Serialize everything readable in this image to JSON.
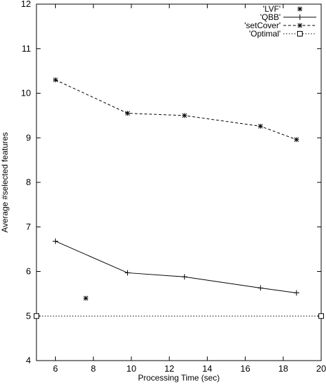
{
  "chart_data": {
    "type": "line",
    "xlabel": "Processing Time (sec)",
    "ylabel": "Average #selected features",
    "xlim": [
      5,
      20
    ],
    "ylim": [
      4,
      12
    ],
    "xticks": [
      6,
      8,
      10,
      12,
      14,
      16,
      18,
      20
    ],
    "yticks": [
      4,
      5,
      6,
      7,
      8,
      9,
      10,
      11,
      12
    ],
    "grid": false,
    "legend_position": "top-right",
    "series": [
      {
        "name": "'LVF'",
        "style": "points",
        "marker": "star",
        "x": [
          7.6
        ],
        "y": [
          5.4
        ]
      },
      {
        "name": "'QBB'",
        "style": "linespoints",
        "line": "solid",
        "marker": "plus",
        "x": [
          6.0,
          9.8,
          12.8,
          16.8,
          18.7
        ],
        "y": [
          6.68,
          5.97,
          5.88,
          5.63,
          5.52
        ]
      },
      {
        "name": "'setCover'",
        "style": "linespoints",
        "line": "dashed",
        "marker": "star",
        "x": [
          6.0,
          9.8,
          12.8,
          16.8,
          18.7
        ],
        "y": [
          10.3,
          9.55,
          9.5,
          9.26,
          8.96
        ]
      },
      {
        "name": "'Optimal'",
        "style": "linespoints",
        "line": "dotted",
        "marker": "square",
        "x": [
          5.0,
          20.0
        ],
        "y": [
          5.0,
          5.0
        ]
      }
    ]
  }
}
